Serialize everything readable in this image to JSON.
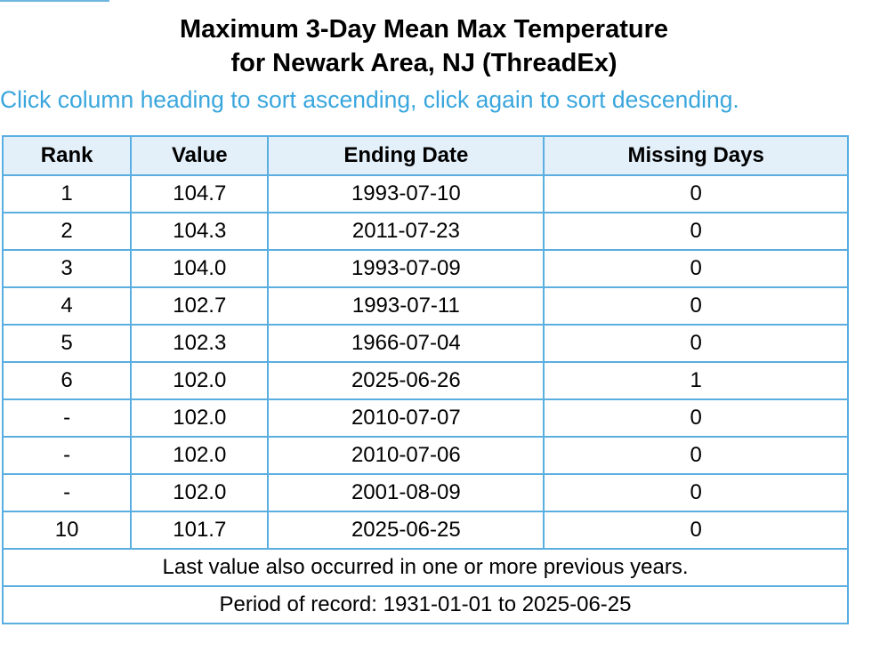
{
  "title": {
    "line1": "Maximum 3-Day Mean Max Temperature",
    "line2": "for Newark Area, NJ (ThreadEx)"
  },
  "sort_hint": "Click column heading to sort ascending, click again to sort descending.",
  "table": {
    "headers": {
      "rank": "Rank",
      "value": "Value",
      "ending_date": "Ending Date",
      "missing_days": "Missing Days"
    },
    "rows": [
      {
        "rank": "1",
        "value": "104.7",
        "ending_date": "1993-07-10",
        "missing_days": "0"
      },
      {
        "rank": "2",
        "value": "104.3",
        "ending_date": "2011-07-23",
        "missing_days": "0"
      },
      {
        "rank": "3",
        "value": "104.0",
        "ending_date": "1993-07-09",
        "missing_days": "0"
      },
      {
        "rank": "4",
        "value": "102.7",
        "ending_date": "1993-07-11",
        "missing_days": "0"
      },
      {
        "rank": "5",
        "value": "102.3",
        "ending_date": "1966-07-04",
        "missing_days": "0"
      },
      {
        "rank": "6",
        "value": "102.0",
        "ending_date": "2025-06-26",
        "missing_days": "1"
      },
      {
        "rank": "-",
        "value": "102.0",
        "ending_date": "2010-07-07",
        "missing_days": "0"
      },
      {
        "rank": "-",
        "value": "102.0",
        "ending_date": "2010-07-06",
        "missing_days": "0"
      },
      {
        "rank": "-",
        "value": "102.0",
        "ending_date": "2001-08-09",
        "missing_days": "0"
      },
      {
        "rank": "10",
        "value": "101.7",
        "ending_date": "2025-06-25",
        "missing_days": "0"
      }
    ],
    "footnote": "Last value also occurred in one or more previous years.",
    "period_of_record": "Period of record: 1931-01-01 to 2025-06-25"
  },
  "colors": {
    "accent": "#3aa6dd",
    "border": "#5aaee0",
    "header_bg": "#e3f0fa"
  }
}
